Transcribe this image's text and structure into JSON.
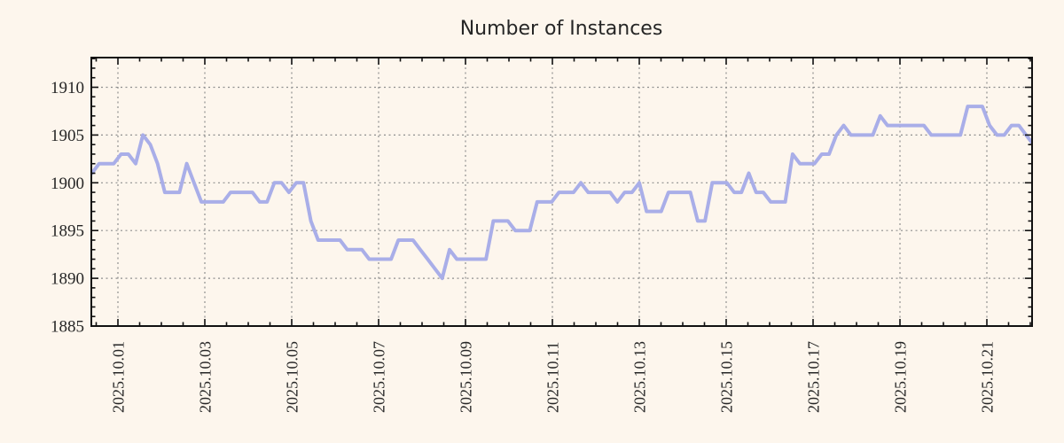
{
  "page": {
    "background_color": "#fdf6ed"
  },
  "chart_data": {
    "type": "line",
    "title": "Number of Instances",
    "legend": "none",
    "grid": "dotted-at-major-ticks",
    "line_color": "#a9aee8",
    "line_width": 4,
    "axis_color": "#111111",
    "grid_color": "#8f8f8f",
    "text_color": "#262626",
    "x_axis": {
      "tick_labels": [
        "2025.10.01",
        "2025.10.03",
        "2025.10.05",
        "2025.10.07",
        "2025.10.09",
        "2025.10.11",
        "2025.10.13",
        "2025.10.15",
        "2025.10.17",
        "2025.10.19",
        "2025.10.21"
      ],
      "tick_days": [
        0,
        2,
        4,
        6,
        8,
        10,
        12,
        14,
        16,
        18,
        20
      ],
      "minor_tick_interval_days": 0.5,
      "range_days": [
        -0.61,
        21.04
      ]
    },
    "y_axis": {
      "tick_labels": [
        "1885",
        "1890",
        "1895",
        "1900",
        "1905",
        "1910"
      ],
      "tick_values": [
        1885,
        1890,
        1895,
        1900,
        1905,
        1910
      ],
      "minor_tick_interval": 1,
      "range": [
        1885,
        1913.1
      ]
    },
    "sampling": {
      "x_start_day": -0.6,
      "x_step_day": 0.168
    },
    "series": [
      {
        "name": "instances",
        "values": [
          1901,
          1902,
          1902,
          1902,
          1903,
          1903,
          1902,
          1905,
          1904,
          1902,
          1899,
          1899,
          1899,
          1902,
          1900,
          1898,
          1898,
          1898,
          1898,
          1899,
          1899,
          1899,
          1899,
          1898,
          1898,
          1900,
          1900,
          1899,
          1900,
          1900,
          1896,
          1894,
          1894,
          1894,
          1894,
          1893,
          1893,
          1893,
          1892,
          1892,
          1892,
          1892,
          1894,
          1894,
          1894,
          1893,
          1892,
          1891,
          1890,
          1893,
          1892,
          1892,
          1892,
          1892,
          1892,
          1896,
          1896,
          1896,
          1895,
          1895,
          1895,
          1898,
          1898,
          1898,
          1899,
          1899,
          1899,
          1900,
          1899,
          1899,
          1899,
          1899,
          1898,
          1899,
          1899,
          1900,
          1897,
          1897,
          1897,
          1899,
          1899,
          1899,
          1899,
          1896,
          1896,
          1900,
          1900,
          1900,
          1899,
          1899,
          1901,
          1899,
          1899,
          1898,
          1898,
          1898,
          1903,
          1902,
          1902,
          1902,
          1903,
          1903,
          1905,
          1906,
          1905,
          1905,
          1905,
          1905,
          1907,
          1906,
          1906,
          1906,
          1906,
          1906,
          1906,
          1905,
          1905,
          1905,
          1905,
          1905,
          1908,
          1908,
          1908,
          1906,
          1905,
          1905,
          1906,
          1906,
          1905,
          1904
        ]
      }
    ]
  }
}
